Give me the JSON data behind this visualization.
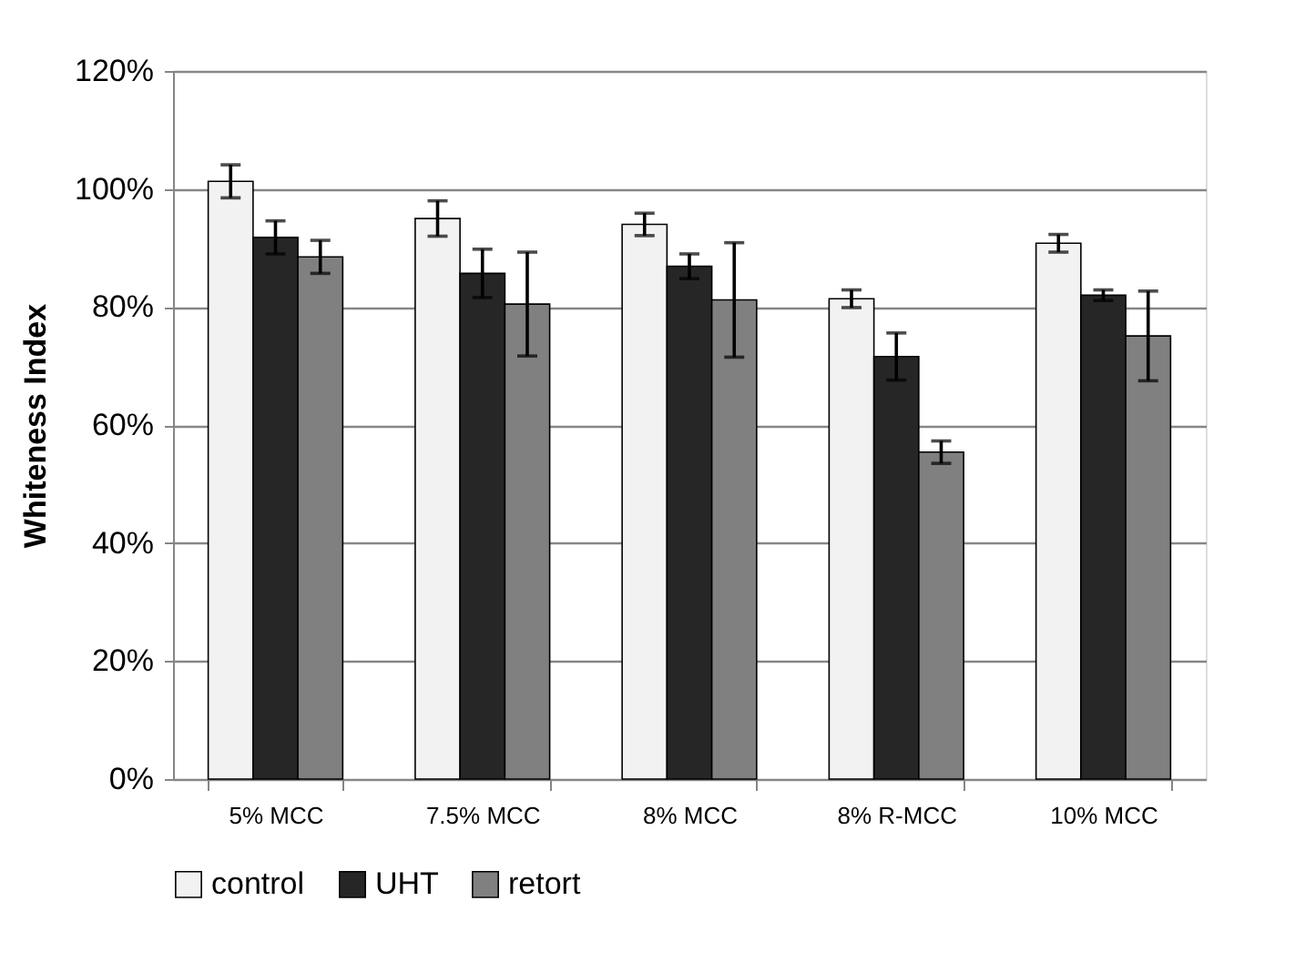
{
  "chart_data": {
    "type": "bar",
    "ylabel": "Whiteness Index",
    "categories": [
      "5% MCC",
      "7.5% MCC",
      "8% MCC",
      "8% R-MCC",
      "10% MCC"
    ],
    "series": [
      {
        "name": "control",
        "color": "#f2f2f2",
        "values": [
          101.3,
          95.0,
          94.0,
          81.4,
          90.8
        ],
        "errors": [
          2.8,
          3.0,
          1.9,
          1.5,
          1.5
        ]
      },
      {
        "name": "UHT",
        "color": "#262626",
        "values": [
          91.8,
          85.7,
          86.9,
          71.6,
          82.0
        ],
        "errors": [
          2.8,
          4.1,
          2.1,
          4.0,
          0.9
        ]
      },
      {
        "name": "retort",
        "color": "#808080",
        "values": [
          88.5,
          80.5,
          81.2,
          55.4,
          75.1
        ],
        "errors": [
          2.8,
          8.8,
          9.7,
          1.9,
          7.6
        ]
      }
    ],
    "ylim": [
      0,
      120
    ],
    "yticks": [
      {
        "value": 0,
        "label": "0%"
      },
      {
        "value": 20,
        "label": "20%"
      },
      {
        "value": 40,
        "label": "40%"
      },
      {
        "value": 60,
        "label": "60%"
      },
      {
        "value": 80,
        "label": "80%"
      },
      {
        "value": 100,
        "label": "100%"
      },
      {
        "value": 120,
        "label": "120%"
      }
    ],
    "grid": "y",
    "legend": "bottom"
  }
}
